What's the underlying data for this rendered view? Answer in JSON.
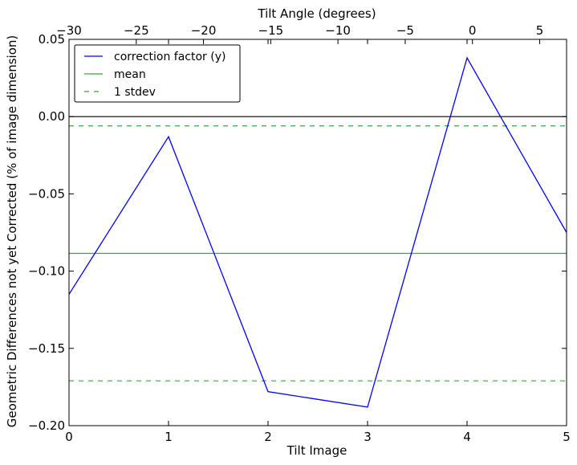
{
  "chart_data": {
    "type": "line",
    "xlabel": "Tilt Image",
    "x2label": "Tilt Angle (degrees)",
    "ylabel": "Geometric Differences not yet Corrected (% of image dimension)",
    "xlim": [
      0,
      5
    ],
    "x2lim": [
      -30,
      7
    ],
    "ylim": [
      -0.2,
      0.05
    ],
    "xticks": [
      "0",
      "1",
      "2",
      "3",
      "4",
      "5"
    ],
    "x2ticks": [
      "−30",
      "−25",
      "−20",
      "−15",
      "−10",
      "−5",
      "0",
      "5"
    ],
    "yticks": [
      "0.05",
      "0.00",
      "−0.05",
      "−0.10",
      "−0.15",
      "−0.20"
    ],
    "x2tick_values": [
      -30,
      -25,
      -20,
      -15,
      -10,
      -5,
      0,
      5
    ],
    "ytick_values": [
      0.05,
      0.0,
      -0.05,
      -0.1,
      -0.15,
      -0.2
    ],
    "grid": false,
    "legend_position": "top-left",
    "series": [
      {
        "name": "correction factor (y)",
        "color": "#0000ff",
        "style": "solid",
        "x": [
          0,
          1,
          2,
          3,
          4,
          5
        ],
        "y": [
          -0.115,
          -0.013,
          -0.178,
          -0.188,
          0.038,
          -0.075
        ]
      },
      {
        "name": "mean",
        "color": "#3aa53a",
        "style": "solid",
        "y": -0.0885
      },
      {
        "name": "1 stdev",
        "color": "#3aa53a",
        "style": "dashed",
        "y": [
          -0.006,
          -0.171
        ]
      }
    ],
    "zero_line": {
      "y": 0.0,
      "color": "#000000"
    }
  }
}
